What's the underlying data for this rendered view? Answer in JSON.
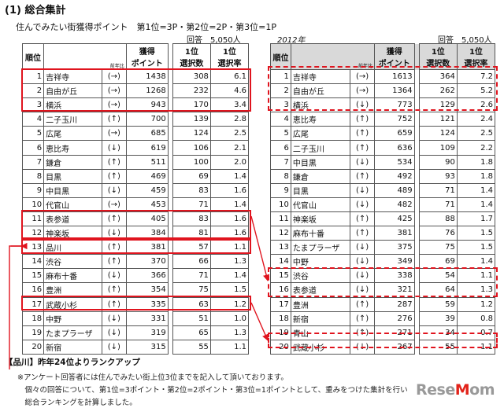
{
  "title": "(1) 総合集計",
  "subtitle": "住んでみたい街獲得ポイント　第1位=3P・第2位=2P・第3位=1P",
  "respondents": "回答　5,050人",
  "year_2012": "2012年",
  "headers": {
    "rank": "順位",
    "prev": "前年比",
    "points": "獲得\nポイント",
    "first_votes": "1位\n選択数",
    "first_rate": "1位\n選択率"
  },
  "rows_2013": [
    {
      "rank": "1",
      "name": "吉祥寺",
      "prev": "(→)",
      "points": "1438",
      "votes": "308",
      "rate": "6.1"
    },
    {
      "rank": "2",
      "name": "自由が丘",
      "prev": "(→)",
      "points": "1268",
      "votes": "232",
      "rate": "4.6"
    },
    {
      "rank": "3",
      "name": "横浜",
      "prev": "(→)",
      "points": "943",
      "votes": "170",
      "rate": "3.4"
    },
    {
      "rank": "4",
      "name": "二子玉川",
      "prev": "(↑)",
      "points": "700",
      "votes": "139",
      "rate": "2.8"
    },
    {
      "rank": "5",
      "name": "広尾",
      "prev": "(→)",
      "points": "685",
      "votes": "124",
      "rate": "2.5"
    },
    {
      "rank": "6",
      "name": "恵比寿",
      "prev": "(↓)",
      "points": "619",
      "votes": "106",
      "rate": "2.1"
    },
    {
      "rank": "7",
      "name": "鎌倉",
      "prev": "(↑)",
      "points": "511",
      "votes": "100",
      "rate": "2.0"
    },
    {
      "rank": "8",
      "name": "目黒",
      "prev": "(↑)",
      "points": "469",
      "votes": "69",
      "rate": "1.4"
    },
    {
      "rank": "9",
      "name": "中目黒",
      "prev": "(↓)",
      "points": "459",
      "votes": "83",
      "rate": "1.6"
    },
    {
      "rank": "10",
      "name": "代官山",
      "prev": "(→)",
      "points": "453",
      "votes": "71",
      "rate": "1.4"
    },
    {
      "rank": "11",
      "name": "表参道",
      "prev": "(↑)",
      "points": "405",
      "votes": "83",
      "rate": "1.6"
    },
    {
      "rank": "12",
      "name": "神楽坂",
      "prev": "(↓)",
      "points": "384",
      "votes": "81",
      "rate": "1.6"
    },
    {
      "rank": "13",
      "name": "品川",
      "prev": "(↑)",
      "points": "381",
      "votes": "57",
      "rate": "1.1"
    },
    {
      "rank": "14",
      "name": "渋谷",
      "prev": "(↑)",
      "points": "370",
      "votes": "66",
      "rate": "1.3"
    },
    {
      "rank": "15",
      "name": "麻布十番",
      "prev": "(↓)",
      "points": "366",
      "votes": "71",
      "rate": "1.4"
    },
    {
      "rank": "16",
      "name": "豊洲",
      "prev": "(↑)",
      "points": "354",
      "votes": "75",
      "rate": "1.5"
    },
    {
      "rank": "17",
      "name": "武蔵小杉",
      "prev": "(↑)",
      "points": "335",
      "votes": "63",
      "rate": "1.2"
    },
    {
      "rank": "18",
      "name": "中野",
      "prev": "(↓)",
      "points": "331",
      "votes": "51",
      "rate": "1.0"
    },
    {
      "rank": "19",
      "name": "たまプラーザ",
      "prev": "(↓)",
      "points": "319",
      "votes": "65",
      "rate": "1.3"
    },
    {
      "rank": "20",
      "name": "新宿",
      "prev": "(↓)",
      "points": "315",
      "votes": "55",
      "rate": "1.1"
    }
  ],
  "rows_2012": [
    {
      "rank": "1",
      "name": "吉祥寺",
      "prev": "(→)",
      "points": "1613",
      "votes": "364",
      "rate": "7.2"
    },
    {
      "rank": "2",
      "name": "自由が丘",
      "prev": "(→)",
      "points": "1364",
      "votes": "262",
      "rate": "5.2"
    },
    {
      "rank": "3",
      "name": "横浜",
      "prev": "(↓)",
      "points": "773",
      "votes": "129",
      "rate": "2.6"
    },
    {
      "rank": "4",
      "name": "恵比寿",
      "prev": "(↑)",
      "points": "752",
      "votes": "121",
      "rate": "2.4"
    },
    {
      "rank": "5",
      "name": "広尾",
      "prev": "(↑)",
      "points": "659",
      "votes": "124",
      "rate": "2.5"
    },
    {
      "rank": "6",
      "name": "二子玉川",
      "prev": "(↑)",
      "points": "636",
      "votes": "109",
      "rate": "2.2"
    },
    {
      "rank": "7",
      "name": "中目黒",
      "prev": "(↓)",
      "points": "534",
      "votes": "90",
      "rate": "1.8"
    },
    {
      "rank": "8",
      "name": "鎌倉",
      "prev": "(↑)",
      "points": "492",
      "votes": "93",
      "rate": "1.8"
    },
    {
      "rank": "9",
      "name": "目黒",
      "prev": "(↓)",
      "points": "489",
      "votes": "71",
      "rate": "1.4"
    },
    {
      "rank": "10",
      "name": "代官山",
      "prev": "(↓)",
      "points": "482",
      "votes": "71",
      "rate": "1.4"
    },
    {
      "rank": "11",
      "name": "神楽坂",
      "prev": "(↑)",
      "points": "425",
      "votes": "88",
      "rate": "1.7"
    },
    {
      "rank": "12",
      "name": "麻布十番",
      "prev": "(↑)",
      "points": "381",
      "votes": "76",
      "rate": "1.5"
    },
    {
      "rank": "13",
      "name": "たまプラーザ",
      "prev": "(↓)",
      "points": "375",
      "votes": "75",
      "rate": "1.5"
    },
    {
      "rank": "14",
      "name": "中野",
      "prev": "(↓)",
      "points": "349",
      "votes": "69",
      "rate": "1.4"
    },
    {
      "rank": "15",
      "name": "渋谷",
      "prev": "(↓)",
      "points": "338",
      "votes": "54",
      "rate": "1.1"
    },
    {
      "rank": "16",
      "name": "表参道",
      "prev": "(↓)",
      "points": "321",
      "votes": "64",
      "rate": "1.3"
    },
    {
      "rank": "17",
      "name": "豊洲",
      "prev": "(↑)",
      "points": "287",
      "votes": "59",
      "rate": "1.2"
    },
    {
      "rank": "18",
      "name": "新宿",
      "prev": "(↑)",
      "points": "276",
      "votes": "39",
      "rate": "0.8"
    },
    {
      "rank": "19",
      "name": "青山",
      "prev": "(↑)",
      "points": "271",
      "votes": "34",
      "rate": "0.7"
    },
    {
      "rank": "20",
      "name": "武蔵小杉",
      "prev": "(↓)",
      "points": "267",
      "votes": "55",
      "rate": "1.1"
    }
  ],
  "note_title": "【品川】昨年24位よりランクアップ",
  "notes": [
    "※アンケート回答者には住んでみたい街上位3位までを記入して頂いております。",
    "　個々の回答について、第1位=3ポイント・第2位=2ポイント・第3位=1ポイントとして、重みをつけた集計を行い",
    "　総合ランキングを計算しました。"
  ],
  "logo": "ReseMom",
  "colors": {
    "highlight": "#e0141e",
    "header_2012_bg": "#d9d9d9"
  }
}
